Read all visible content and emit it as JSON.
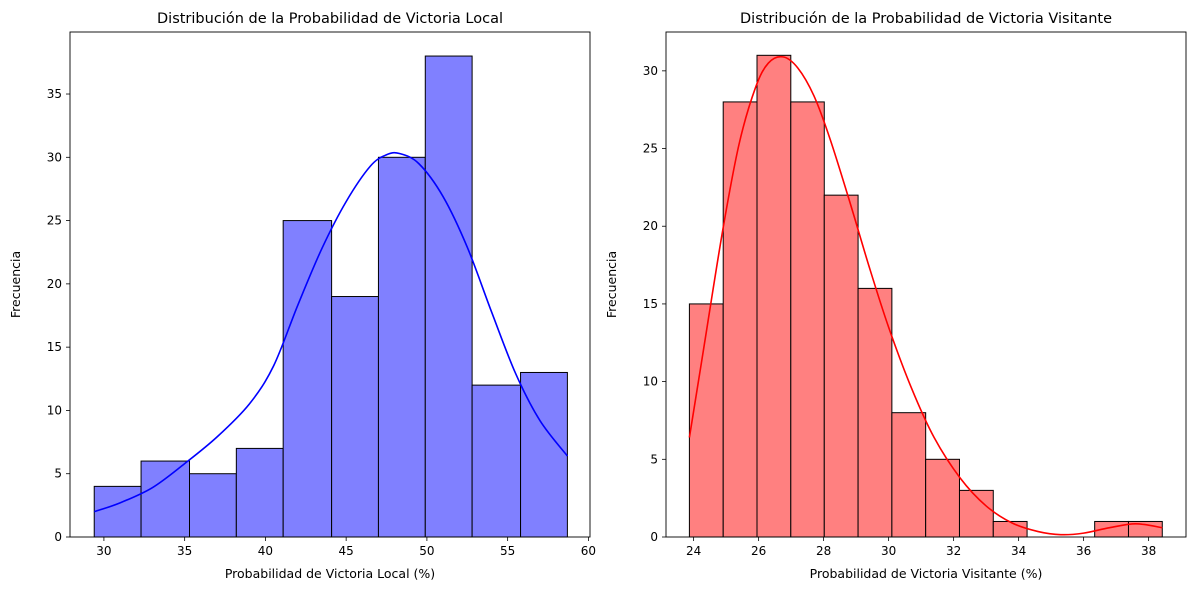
{
  "chart_data": [
    {
      "type": "bar",
      "subtype": "histogram",
      "title": "Distribución de la Probabilidad de Victoria Local",
      "xlabel": "Probabilidad de Victoria Local (%)",
      "ylabel": "Frecuencia",
      "bar_color": "#8080ff",
      "edge_color": "#000000",
      "kde_color": "#0000ff",
      "xlim": [
        27.9,
        60.1
      ],
      "ylim": [
        0,
        39.9
      ],
      "xticks": [
        30,
        35,
        40,
        45,
        50,
        55,
        60
      ],
      "yticks": [
        0,
        5,
        10,
        15,
        20,
        25,
        30,
        35
      ],
      "bins": [
        {
          "start": 29.4,
          "end": 32.3,
          "count": 4
        },
        {
          "start": 32.3,
          "end": 35.3,
          "count": 6
        },
        {
          "start": 35.3,
          "end": 38.2,
          "count": 5
        },
        {
          "start": 38.2,
          "end": 41.1,
          "count": 7
        },
        {
          "start": 41.1,
          "end": 44.1,
          "count": 25
        },
        {
          "start": 44.1,
          "end": 47.0,
          "count": 19
        },
        {
          "start": 47.0,
          "end": 49.9,
          "count": 30
        },
        {
          "start": 49.9,
          "end": 52.8,
          "count": 38
        },
        {
          "start": 52.8,
          "end": 55.8,
          "count": 12
        },
        {
          "start": 55.8,
          "end": 58.7,
          "count": 13
        }
      ],
      "kde": {
        "x": [
          29.4,
          31.0,
          33.0,
          35.0,
          37.0,
          39.0,
          40.5,
          42.0,
          43.5,
          45.0,
          46.5,
          47.5,
          48.3,
          49.5,
          51.0,
          52.5,
          54.0,
          55.5,
          57.0,
          58.7
        ],
        "y": [
          2.0,
          2.7,
          3.9,
          5.8,
          7.9,
          10.5,
          13.5,
          18.3,
          22.8,
          26.5,
          29.3,
          30.2,
          30.3,
          29.5,
          26.9,
          22.9,
          17.8,
          12.9,
          9.2,
          6.4
        ]
      }
    },
    {
      "type": "bar",
      "subtype": "histogram",
      "title": "Distribución de la Probabilidad de Victoria Visitante",
      "xlabel": "Probabilidad de Victoria Visitante (%)",
      "ylabel": "Frecuencia",
      "bar_color": "#ff8080",
      "edge_color": "#000000",
      "kde_color": "#ff0000",
      "xlim": [
        23.15,
        39.15
      ],
      "ylim": [
        0,
        32.5
      ],
      "xticks": [
        24,
        26,
        28,
        30,
        32,
        34,
        36,
        38
      ],
      "yticks": [
        0,
        5,
        10,
        15,
        20,
        25,
        30
      ],
      "bins": [
        {
          "start": 23.87,
          "end": 24.91,
          "count": 15
        },
        {
          "start": 24.91,
          "end": 25.95,
          "count": 28
        },
        {
          "start": 25.95,
          "end": 26.99,
          "count": 31
        },
        {
          "start": 26.99,
          "end": 28.02,
          "count": 28
        },
        {
          "start": 28.02,
          "end": 29.06,
          "count": 22
        },
        {
          "start": 29.06,
          "end": 30.1,
          "count": 16
        },
        {
          "start": 30.1,
          "end": 31.14,
          "count": 8
        },
        {
          "start": 31.14,
          "end": 32.18,
          "count": 5
        },
        {
          "start": 32.18,
          "end": 33.22,
          "count": 3
        },
        {
          "start": 33.22,
          "end": 34.26,
          "count": 1
        },
        {
          "start": 34.26,
          "end": 35.3,
          "count": 0
        },
        {
          "start": 35.3,
          "end": 36.34,
          "count": 0
        },
        {
          "start": 36.34,
          "end": 37.38,
          "count": 1
        },
        {
          "start": 37.38,
          "end": 38.42,
          "count": 1
        }
      ],
      "kde": {
        "x": [
          23.87,
          24.3,
          24.9,
          25.4,
          25.9,
          26.3,
          26.75,
          27.2,
          27.7,
          28.2,
          28.8,
          29.4,
          30.0,
          30.7,
          31.4,
          32.2,
          33.0,
          33.8,
          34.6,
          35.3,
          36.0,
          36.8,
          37.6,
          38.42
        ],
        "y": [
          6.4,
          12.0,
          19.8,
          25.3,
          28.9,
          30.5,
          30.9,
          30.2,
          28.4,
          25.6,
          21.6,
          17.4,
          13.5,
          9.6,
          6.4,
          3.8,
          2.0,
          0.9,
          0.35,
          0.15,
          0.25,
          0.6,
          0.85,
          0.6
        ]
      }
    }
  ]
}
